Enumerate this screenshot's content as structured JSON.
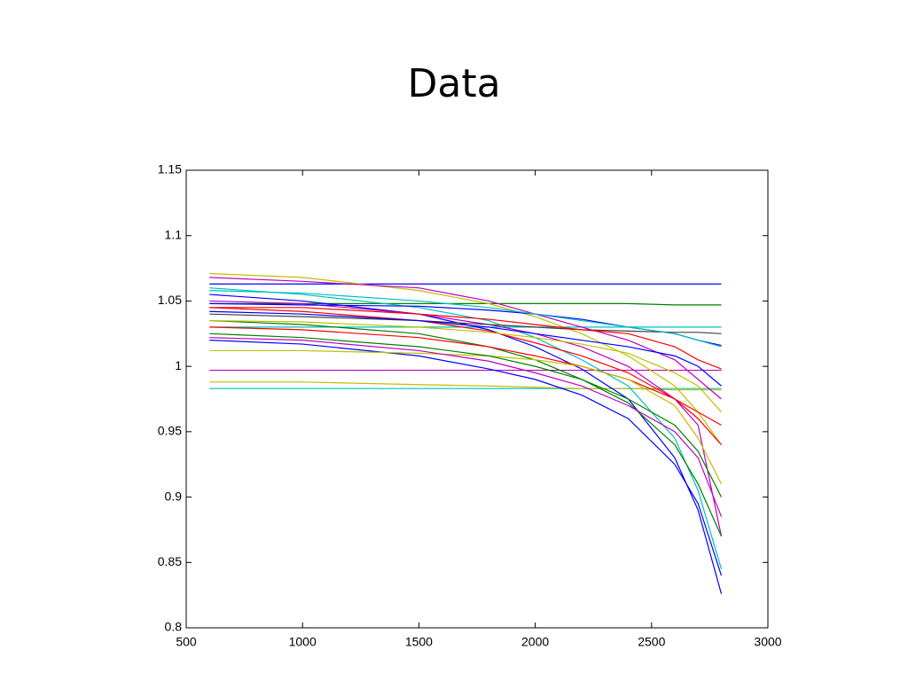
{
  "chart_data": {
    "type": "line",
    "title": "Data",
    "x": [
      600,
      1000,
      1500,
      1800,
      2000,
      2200,
      2400,
      2600,
      2700,
      2800
    ],
    "xlim": [
      500,
      3000
    ],
    "xticks": [
      500,
      1000,
      1500,
      2000,
      2500,
      3000
    ],
    "ylim": [
      0.8,
      1.15
    ],
    "yticks": [
      0.8,
      0.85,
      0.9,
      0.95,
      1,
      1.05,
      1.1,
      1.15
    ],
    "grid": false,
    "series": [
      {
        "color": "#0000ff",
        "values": [
          1.063,
          1.063,
          1.063,
          1.063,
          1.063,
          1.063,
          1.063,
          1.063,
          1.063,
          1.063
        ]
      },
      {
        "color": "#008000",
        "values": [
          1.048,
          1.048,
          1.048,
          1.048,
          1.048,
          1.048,
          1.048,
          1.047,
          1.047,
          1.047
        ]
      },
      {
        "color": "#00bfbf",
        "values": [
          1.03,
          1.03,
          1.03,
          1.03,
          1.03,
          1.03,
          1.03,
          1.03,
          1.03,
          1.03
        ]
      },
      {
        "color": "#bf00bf",
        "values": [
          0.997,
          0.997,
          0.997,
          0.997,
          0.997,
          0.997,
          0.997,
          0.997,
          0.997,
          0.997
        ]
      },
      {
        "color": "#00bfbf",
        "values": [
          0.983,
          0.983,
          0.983,
          0.983,
          0.983,
          0.983,
          0.983,
          0.983,
          0.983,
          0.983
        ]
      },
      {
        "color": "#bfbf00",
        "values": [
          0.988,
          0.988,
          0.986,
          0.985,
          0.984,
          0.983,
          0.983,
          0.982,
          0.982,
          0.982
        ]
      },
      {
        "color": "#bfbf00",
        "values": [
          1.071,
          1.068,
          1.058,
          1.048,
          1.038,
          1.025,
          1.008,
          0.985,
          0.965,
          0.94
        ]
      },
      {
        "color": "#0000ff",
        "values": [
          1.055,
          1.05,
          1.04,
          1.028,
          1.015,
          0.998,
          0.975,
          0.93,
          0.89,
          0.826
        ]
      },
      {
        "color": "#00bfbf",
        "values": [
          1.06,
          1.055,
          1.045,
          1.035,
          1.022,
          1.005,
          0.985,
          0.945,
          0.905,
          0.845
        ]
      },
      {
        "color": "#ff0000",
        "values": [
          1.045,
          1.042,
          1.035,
          1.027,
          1.018,
          1.008,
          0.995,
          0.975,
          0.96,
          0.94
        ]
      },
      {
        "color": "#bf00bf",
        "values": [
          1.05,
          1.048,
          1.04,
          1.032,
          1.025,
          1.015,
          1.0,
          0.975,
          0.955,
          0.87
        ]
      },
      {
        "color": "#008000",
        "values": [
          1.035,
          1.032,
          1.025,
          1.015,
          1.005,
          0.99,
          0.972,
          0.94,
          0.91,
          0.87
        ]
      },
      {
        "color": "#0000ff",
        "values": [
          1.02,
          1.017,
          1.008,
          0.998,
          0.99,
          0.978,
          0.96,
          0.925,
          0.895,
          0.84
        ]
      },
      {
        "color": "#404040",
        "values": [
          1.04,
          1.038,
          1.035,
          1.032,
          1.03,
          1.028,
          1.027,
          1.026,
          1.026,
          1.025
        ]
      },
      {
        "color": "#0000ff",
        "values": [
          1.048,
          1.047,
          1.046,
          1.043,
          1.04,
          1.036,
          1.03,
          1.025,
          1.02,
          1.016
        ]
      },
      {
        "color": "#ff0000",
        "values": [
          1.03,
          1.028,
          1.022,
          1.015,
          1.008,
          1.0,
          0.99,
          0.975,
          0.965,
          0.955
        ]
      },
      {
        "color": "#bfbf00",
        "values": [
          1.012,
          1.012,
          1.01,
          1.008,
          1.005,
          1.0,
          0.99,
          0.97,
          0.945,
          0.91
        ]
      },
      {
        "color": "#008000",
        "values": [
          1.025,
          1.022,
          1.015,
          1.008,
          1.0,
          0.99,
          0.975,
          0.955,
          0.935,
          0.9
        ]
      },
      {
        "color": "#bf00bf",
        "values": [
          1.068,
          1.065,
          1.06,
          1.05,
          1.04,
          1.03,
          1.02,
          1.005,
          0.99,
          0.975
        ]
      },
      {
        "color": "#00bfbf",
        "values": [
          1.058,
          1.056,
          1.05,
          1.045,
          1.04,
          1.035,
          1.03,
          1.025,
          1.02,
          1.015
        ]
      },
      {
        "color": "#0000ff",
        "values": [
          1.042,
          1.04,
          1.035,
          1.03,
          1.025,
          1.02,
          1.015,
          1.008,
          1.0,
          0.985
        ]
      },
      {
        "color": "#ff0000",
        "values": [
          1.045,
          1.045,
          1.04,
          1.036,
          1.032,
          1.028,
          1.025,
          1.015,
          1.005,
          0.998
        ]
      },
      {
        "color": "#bfbf00",
        "values": [
          1.035,
          1.034,
          1.03,
          1.026,
          1.022,
          1.017,
          1.01,
          0.995,
          0.985,
          0.965
        ]
      },
      {
        "color": "#bf00bf",
        "values": [
          1.022,
          1.02,
          1.012,
          1.004,
          0.995,
          0.985,
          0.97,
          0.95,
          0.93,
          0.885
        ]
      }
    ]
  }
}
